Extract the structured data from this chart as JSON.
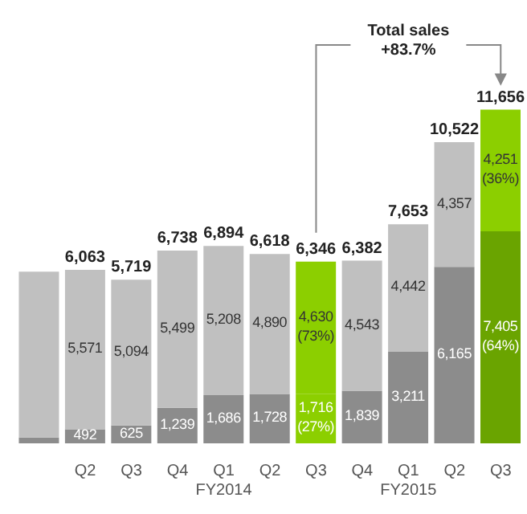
{
  "chart_data": {
    "type": "bar",
    "stacked": true,
    "categories": [
      null,
      "Q2",
      "Q3",
      "Q4",
      "Q1\nFY2014",
      "Q2",
      "Q3",
      "Q4",
      "Q1\nFY2015",
      "Q2",
      "Q3"
    ],
    "series": [
      {
        "values": [
          200,
          492,
          625,
          1239,
          1686,
          1728,
          1716,
          1839,
          3211,
          6165,
          7405
        ],
        "colors": [
          "#8c8c8c",
          "#8c8c8c",
          "#8c8c8c",
          "#8c8c8c",
          "#8c8c8c",
          "#8c8c8c",
          "#8ccf00",
          "#8c8c8c",
          "#8c8c8c",
          "#8c8c8c",
          "#6aa400"
        ],
        "value_labels": [
          null,
          "492",
          "625",
          "1,239",
          "1,686",
          "1,728",
          "1,716\n(27%)",
          "1,839",
          "3,211",
          "6,165",
          "7,405\n(64%)"
        ]
      },
      {
        "values": [
          5800,
          5571,
          5094,
          5499,
          5208,
          4890,
          4630,
          4543,
          4442,
          4357,
          4251
        ],
        "colors": [
          "#c0c0c0",
          "#c0c0c0",
          "#c0c0c0",
          "#c0c0c0",
          "#c0c0c0",
          "#c0c0c0",
          "#8ccf00",
          "#c0c0c0",
          "#c0c0c0",
          "#c0c0c0",
          "#8ccf00"
        ],
        "value_labels": [
          null,
          "5,571",
          "5,094",
          "5,499",
          "5,208",
          "4,890",
          "4,630\n(73%)",
          "4,543",
          "4,442",
          "4,357",
          "4,251\n(36%)"
        ]
      }
    ],
    "totals": [
      null,
      "6,063",
      "5,719",
      "6,738",
      "6,894",
      "6,618",
      "6,346",
      "6,382",
      "7,653",
      "10,522",
      "11,656"
    ],
    "annotations": [
      "Total sales\n+83.7%"
    ],
    "grid": false,
    "legend": false
  }
}
